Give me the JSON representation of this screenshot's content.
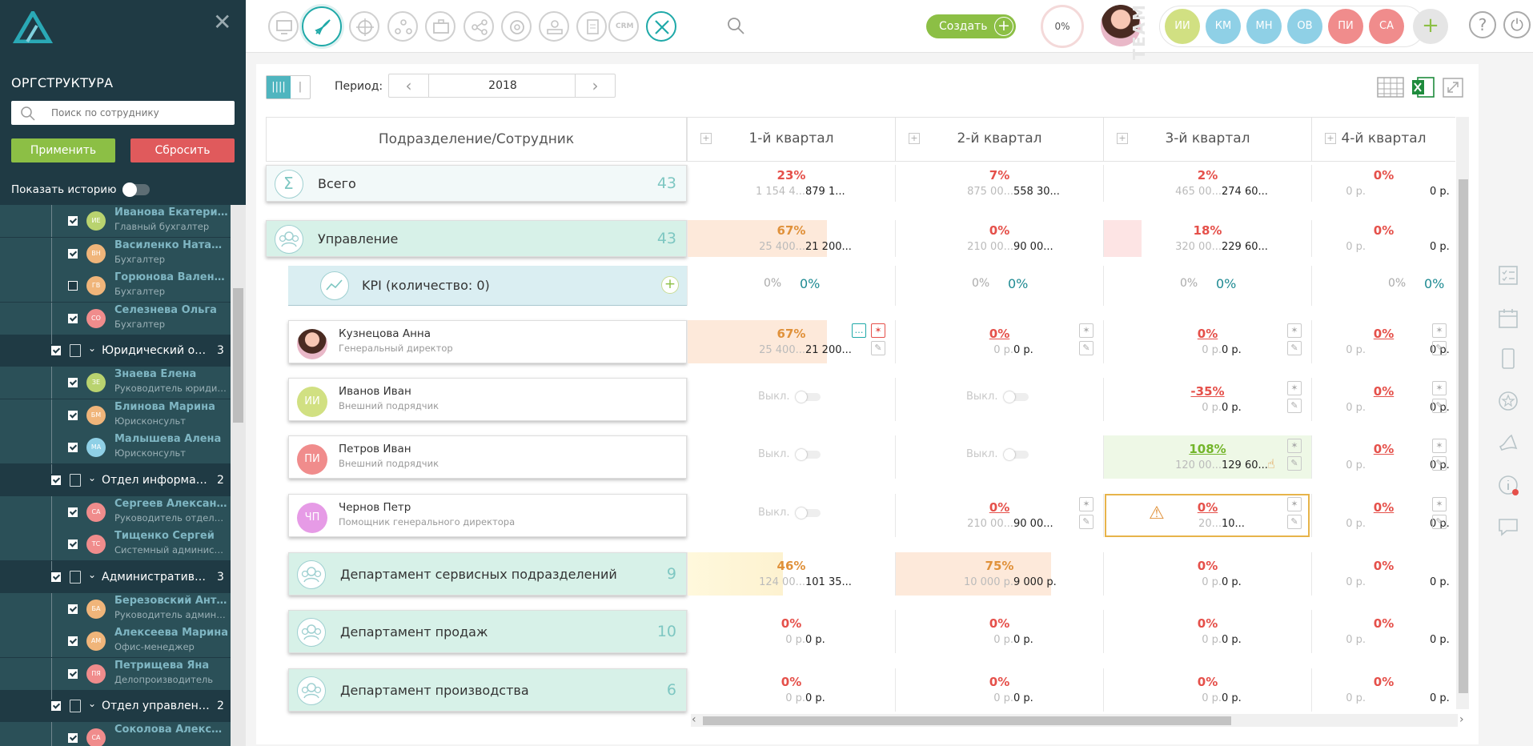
{
  "sidebar": {
    "title": "ОРГСТРУКТУРА",
    "search_placeholder": "Поиск по сотруднику",
    "apply_label": "Применить",
    "reset_label": "Сбросить",
    "history_label": "Показать историю",
    "tree": [
      {
        "type": "emp",
        "initials": "ИЕ",
        "color": "#b9d36f",
        "name": "Иванова Екатерина",
        "pos": "Главный бухгалтер",
        "checked": true
      },
      {
        "type": "emp",
        "initials": "ВН",
        "color": "#f0b57a",
        "name": "Василенко Наталья",
        "pos": "Бухгалтер",
        "checked": true
      },
      {
        "type": "emp",
        "initials": "ГВ",
        "color": "#f0b57a",
        "name": "Горюнова Валентина",
        "pos": "Бухгалтер",
        "checked": false
      },
      {
        "type": "emp",
        "initials": "СО",
        "color": "#f08c8c",
        "name": "Селезнева Ольга",
        "pos": "Бухгалтер",
        "checked": true
      },
      {
        "type": "dept",
        "name": "Юридический отдел",
        "count": "3"
      },
      {
        "type": "emp",
        "initials": "ЗЕ",
        "color": "#b9d36f",
        "name": "Знаева Елена",
        "pos": "Руководитель юридического отдела",
        "checked": true
      },
      {
        "type": "emp",
        "initials": "БМ",
        "color": "#f0b57a",
        "name": "Блинова Марина",
        "pos": "Юрисконсульт",
        "checked": true
      },
      {
        "type": "emp",
        "initials": "МА",
        "color": "#8fd0e6",
        "name": "Малышева Алена",
        "pos": "Юрисконсульт",
        "checked": true
      },
      {
        "type": "dept",
        "name": "Отдел информационных технологий",
        "count": "2"
      },
      {
        "type": "emp",
        "initials": "СА",
        "color": "#f08c8c",
        "name": "Сергеев Александр",
        "pos": "Руководитель отдела ИТ",
        "checked": true
      },
      {
        "type": "emp",
        "initials": "ТС",
        "color": "#f08c8c",
        "name": "Тищенко Сергей",
        "pos": "Системный администратор",
        "checked": true
      },
      {
        "type": "dept",
        "name": "Административно-хозяйственный отдел",
        "count": "3"
      },
      {
        "type": "emp",
        "initials": "БА",
        "color": "#f0b57a",
        "name": "Березовский Антон",
        "pos": "Руководитель административного отдела",
        "checked": true
      },
      {
        "type": "emp",
        "initials": "АМ",
        "color": "#f0b57a",
        "name": "Алексеева Марина",
        "pos": "Офис-менеджер",
        "checked": true
      },
      {
        "type": "emp",
        "initials": "ПЯ",
        "color": "#f08c8c",
        "name": "Петрищева Яна",
        "pos": "Делопроизводитель",
        "checked": true
      },
      {
        "type": "dept",
        "name": "Отдел управления персоналом",
        "count": "2"
      },
      {
        "type": "emp",
        "initials": "СА",
        "color": "#f08c8c",
        "name": "Соколова Александра",
        "pos": "",
        "checked": true
      }
    ]
  },
  "topbar": {
    "create_label": "Создать",
    "progress": "0%",
    "team_label": "TEAM",
    "team": [
      {
        "initials": "ИИ",
        "color": "#d1e082"
      },
      {
        "initials": "КМ",
        "color": "#8fd0e6"
      },
      {
        "initials": "МН",
        "color": "#8fd0e6"
      },
      {
        "initials": "ОВ",
        "color": "#8fd0e6"
      },
      {
        "initials": "ПИ",
        "color": "#f08c8c"
      },
      {
        "initials": "СА",
        "color": "#f08c8c"
      }
    ],
    "help_glyph": "?",
    "power_glyph": "⏻"
  },
  "toolbar": {
    "period_label": "Период:",
    "period_value": "2018",
    "prev": "‹",
    "next": "›"
  },
  "grid": {
    "header_left": "Подразделение/Сотрудник",
    "quarters": [
      "1-й квартал",
      "2-й квартал",
      "3-й квартал",
      "4-й квартал"
    ],
    "off_label": "Выкл.",
    "rows": [
      {
        "kind": "total",
        "name": "Всего",
        "count": "43",
        "cells": [
          {
            "pct": "23%",
            "c": "red",
            "p1": "1 154 4...",
            "p2": "879 1..."
          },
          {
            "pct": "7%",
            "c": "red",
            "p1": "875 00...",
            "p2": "558 30..."
          },
          {
            "pct": "2%",
            "c": "red",
            "p1": "465 00...",
            "p2": "274 60..."
          },
          {
            "pct": "0%",
            "c": "red",
            "p1": "0 р.",
            "p2": "0 р."
          }
        ]
      },
      {
        "kind": "dept",
        "name": "Управление",
        "count": "43",
        "cells": [
          {
            "pct": "67%",
            "c": "orange",
            "p1": "25 400...",
            "p2": "21 200...",
            "fill": 0.67
          },
          {
            "pct": "0%",
            "c": "red",
            "p1": "210 00...",
            "p2": "90 00..."
          },
          {
            "pct": "18%",
            "c": "red",
            "p1": "320 00...",
            "p2": "229 60...",
            "fill": 0.18
          },
          {
            "pct": "0%",
            "c": "red",
            "p1": "0 р.",
            "p2": "0 р."
          }
        ]
      },
      {
        "kind": "kpi",
        "name": "KPI (количество: 0)",
        "cells": [
          {
            "a": "0%",
            "b": "0%"
          },
          {
            "a": "0%",
            "b": "0%"
          },
          {
            "a": "0%",
            "b": "0%"
          },
          {
            "a": "0%",
            "b": "0%"
          }
        ]
      },
      {
        "kind": "emp",
        "name": "Кузнецова Анна",
        "pos": "Генеральный директор",
        "initials": "",
        "color": "photo",
        "cells": [
          {
            "pct": "67%",
            "c": "orange",
            "p1": "25 400...",
            "p2": "21 200...",
            "fill": 0.67
          },
          {
            "pct": "0%",
            "c": "red u",
            "p1": "0 р.",
            "p2": "0 р."
          },
          {
            "pct": "0%",
            "c": "red u",
            "p1": "0 р.",
            "p2": "0 р."
          },
          {
            "pct": "0%",
            "c": "red u",
            "p1": "0 р.",
            "p2": "0 р."
          }
        ]
      },
      {
        "kind": "emp",
        "name": "Иванов Иван",
        "pos": "Внешний подрядчик",
        "initials": "ИИ",
        "color": "#d1e082",
        "cells": [
          {
            "off": true
          },
          {
            "off": true
          },
          {
            "pct": "-35%",
            "c": "red u",
            "p1": "0 р.",
            "p2": "0 р."
          },
          {
            "pct": "0%",
            "c": "red u",
            "p1": "0 р.",
            "p2": "0 р."
          }
        ]
      },
      {
        "kind": "emp",
        "name": "Петров Иван",
        "pos": "Внешний подрядчик",
        "initials": "ПИ",
        "color": "#f08c8c",
        "cells": [
          {
            "off": true
          },
          {
            "off": true
          },
          {
            "pct": "108%",
            "c": "green u",
            "p1": "120 00...",
            "p2": "129 60...",
            "greenbg": true
          },
          {
            "pct": "0%",
            "c": "red u",
            "p1": "0 р.",
            "p2": "0 р."
          }
        ]
      },
      {
        "kind": "emp",
        "name": "Чернов Петр",
        "pos": "Помощник генерального директора",
        "initials": "ЧП",
        "color": "#e69be6",
        "cells": [
          {
            "off": true
          },
          {
            "pct": "0%",
            "c": "red u",
            "p1": "210 00...",
            "p2": "90 00..."
          },
          {
            "pct": "0%",
            "c": "red u",
            "p1": "20...",
            "p2": "10...",
            "warn": true
          },
          {
            "pct": "0%",
            "c": "red u",
            "p1": "0 р.",
            "p2": "0 р."
          }
        ]
      },
      {
        "kind": "dept",
        "name": "Департамент сервисных подразделений",
        "count": "9",
        "cells": [
          {
            "pct": "46%",
            "c": "orange",
            "p1": "124 00...",
            "p2": "101 35...",
            "fill": 0.46,
            "yellow": true
          },
          {
            "pct": "75%",
            "c": "orange",
            "p1": "10 000 р.",
            "p2": "9 000 р.",
            "fill": 0.75
          },
          {
            "pct": "0%",
            "c": "red",
            "p1": "0 р.",
            "p2": "0 р."
          },
          {
            "pct": "0%",
            "c": "red",
            "p1": "0 р.",
            "p2": "0 р."
          }
        ]
      },
      {
        "kind": "dept",
        "name": "Департамент продаж",
        "count": "10",
        "cells": [
          {
            "pct": "0%",
            "c": "red",
            "p1": "0 р.",
            "p2": "0 р."
          },
          {
            "pct": "0%",
            "c": "red",
            "p1": "0 р.",
            "p2": "0 р."
          },
          {
            "pct": "0%",
            "c": "red",
            "p1": "0 р.",
            "p2": "0 р."
          },
          {
            "pct": "0%",
            "c": "red",
            "p1": "0 р.",
            "p2": "0 р."
          }
        ]
      },
      {
        "kind": "dept",
        "name": "Департамент производства",
        "count": "6",
        "cells": [
          {
            "pct": "0%",
            "c": "red",
            "p1": "0 р.",
            "p2": "0 р."
          },
          {
            "pct": "0%",
            "c": "red",
            "p1": "0 р.",
            "p2": "0 р."
          },
          {
            "pct": "0%",
            "c": "red",
            "p1": "0 р.",
            "p2": "0 р."
          },
          {
            "pct": "0%",
            "c": "red",
            "p1": "0 р.",
            "p2": "0 р."
          }
        ]
      }
    ]
  }
}
